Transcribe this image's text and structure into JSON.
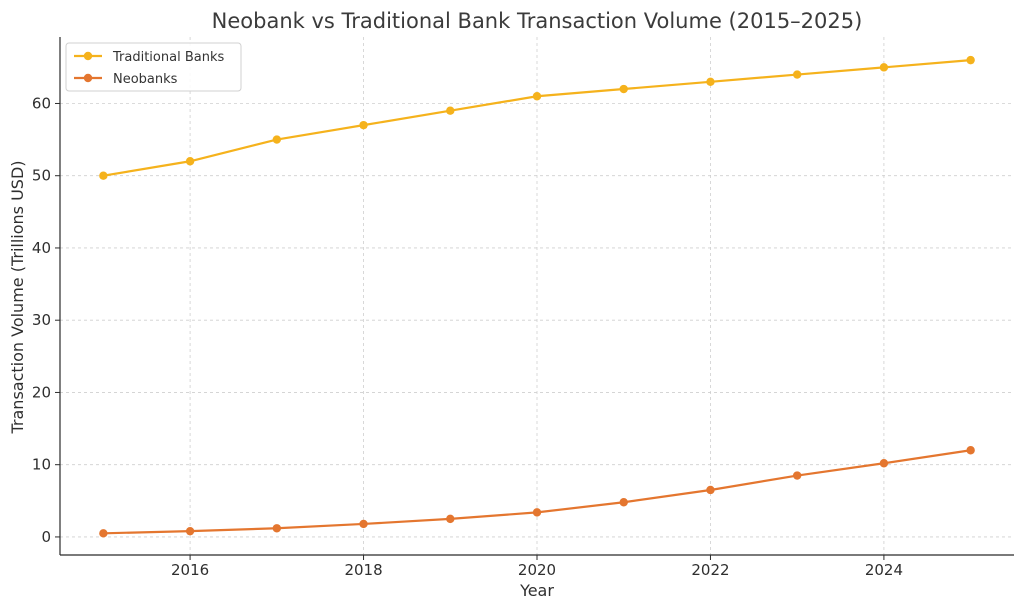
{
  "chart_data": {
    "type": "line",
    "title": "Neobank vs Traditional Bank Transaction Volume (2015–2025)",
    "xlabel": "Year",
    "ylabel": "Transaction Volume (Trillions USD)",
    "x": [
      2015,
      2016,
      2017,
      2018,
      2019,
      2020,
      2021,
      2022,
      2023,
      2024,
      2025
    ],
    "xlim": [
      2014.5,
      2025.5
    ],
    "ylim": [
      -2.5,
      69.2
    ],
    "xticks": [
      2016,
      2018,
      2020,
      2022,
      2024
    ],
    "yticks": [
      0,
      10,
      20,
      30,
      40,
      50,
      60
    ],
    "grid": true,
    "legend_position": "top-left",
    "series": [
      {
        "name": "Traditional Banks",
        "color": "#f5b21c",
        "values": [
          50,
          52,
          55,
          57,
          59,
          61,
          62,
          63,
          64,
          65,
          66
        ]
      },
      {
        "name": "Neobanks",
        "color": "#e4762f",
        "values": [
          0.5,
          0.8,
          1.2,
          1.8,
          2.5,
          3.4,
          4.8,
          6.5,
          8.5,
          10.2,
          12.0
        ]
      }
    ]
  }
}
